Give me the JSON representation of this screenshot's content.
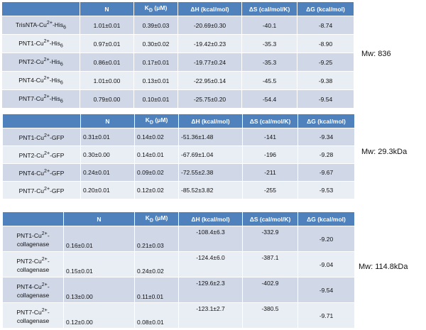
{
  "table1": {
    "headers": [
      "",
      "N",
      "KD (μM)",
      "ΔH (kcal/mol)",
      "ΔS (cal/mol/K)",
      "ΔG (kcal/mol)"
    ],
    "header_kd": {
      "main": "K",
      "sub": "D",
      "rest": " (μM)"
    },
    "rows": [
      {
        "name": {
          "pre": "TrisNTA-Cu",
          "sup": "2+",
          "mid": "-His",
          "sub": "6"
        },
        "cells": [
          "1.01±0.01",
          "0.39±0.03",
          "-20.69±0.30",
          "-40.1",
          "-8.74"
        ]
      },
      {
        "name": {
          "pre": "PNT1-Cu",
          "sup": "2+",
          "mid": "-His",
          "sub": "6"
        },
        "cells": [
          "0.97±0.01",
          "0.30±0.02",
          "-19.42±0.23",
          "-35.3",
          "-8.90"
        ]
      },
      {
        "name": {
          "pre": "PNT2-Cu",
          "sup": "2+",
          "mid": "-His",
          "sub": "6"
        },
        "cells": [
          "0.86±0.01",
          "0.17±0.01",
          "-19.77±0.24",
          "-35.3",
          "-9.25"
        ]
      },
      {
        "name": {
          "pre": "PNT4-Cu",
          "sup": "2+",
          "mid": "-His",
          "sub": "6"
        },
        "cells": [
          "1.01±0.00",
          "0.13±0.01",
          "-22.95±0.14",
          "-45.5",
          "-9.38"
        ]
      },
      {
        "name": {
          "pre": "PNT7-Cu",
          "sup": "2+",
          "mid": "-His",
          "sub": "6"
        },
        "cells": [
          "0.79±0.00",
          "0.10±0.01",
          "-25.75±0.20",
          "-54.4",
          "-9.54"
        ]
      }
    ],
    "mw": "Mw: 836"
  },
  "table2": {
    "headers": [
      "",
      "N",
      "KD (μM)",
      "ΔH (kcal/mol)",
      "ΔS (cal/mol/K)",
      "ΔG (kcal/mol)"
    ],
    "header_kd": {
      "main": "K",
      "sub": "D",
      "rest": " (μM)"
    },
    "rows": [
      {
        "name": {
          "pre": "PNT1-Cu",
          "sup": "2+",
          "mid": "-GFP"
        },
        "cells": [
          "0.31±0.01",
          "0.14±0.02",
          "-51.36±1.48",
          "-141",
          "-9.34"
        ]
      },
      {
        "name": {
          "pre": "PNT2-Cu",
          "sup": "2+",
          "mid": "-GFP"
        },
        "cells": [
          "0.30±0.00",
          "0.14±0.01",
          "-67.69±1.04",
          "-196",
          "-9.28"
        ]
      },
      {
        "name": {
          "pre": "PNT4-Cu",
          "sup": "2+",
          "mid": "-GFP"
        },
        "cells": [
          "0.24±0.01",
          "0.09±0.02",
          "-72.55±2.38",
          "-211",
          "-9.67"
        ]
      },
      {
        "name": {
          "pre": "PNT7-Cu",
          "sup": "2+",
          "mid": "-GFP"
        },
        "cells": [
          "0.20±0.01",
          "0.12±0.02",
          "-85.52±3.82",
          "-255",
          "-9.53"
        ]
      }
    ],
    "mw": "Mw: 29.3kDa"
  },
  "table3": {
    "headers": [
      "",
      "N",
      "KD (μM)",
      "ΔH (kcal/mol)",
      "ΔS (cal/mol/K)",
      "ΔG (kcal/mol)"
    ],
    "header_kd": {
      "main": "K",
      "sub": "D",
      "rest": " (μM)"
    },
    "rows": [
      {
        "name": {
          "pre": "PNT1-Cu",
          "sup": "2+",
          "mid": "-",
          "line2": "collagenase"
        },
        "cells": [
          "0.16±0.01",
          "0.21±0.03",
          "-108.4±6.3",
          "-332.9",
          "-9.20"
        ]
      },
      {
        "name": {
          "pre": "PNT2-Cu",
          "sup": "2+",
          "mid": "-",
          "line2": "collagenase"
        },
        "cells": [
          "0.15±0.01",
          "0.24±0.02",
          "-124.4±6.0",
          "-387.1",
          "-9.04"
        ]
      },
      {
        "name": {
          "pre": "PNT4-Cu",
          "sup": "2+",
          "mid": "-",
          "line2": "collagenase"
        },
        "cells": [
          "0.13±0.00",
          "0.11±0.01",
          "-129.6±2.3",
          "-402.9",
          "-9.54"
        ]
      },
      {
        "name": {
          "pre": "PNT7-Cu",
          "sup": "2+",
          "mid": "-",
          "line2": "collagenase"
        },
        "cells": [
          "0.12±0.00",
          "0.08±0.01",
          "-123.1±2.7",
          "-380.5",
          "-9.71"
        ]
      }
    ],
    "mw": "Mw: 114.8kDa"
  },
  "colors": {
    "header_bg": "#4f81bd",
    "row_odd": "#d0d8e8",
    "row_even": "#e9edf4"
  }
}
